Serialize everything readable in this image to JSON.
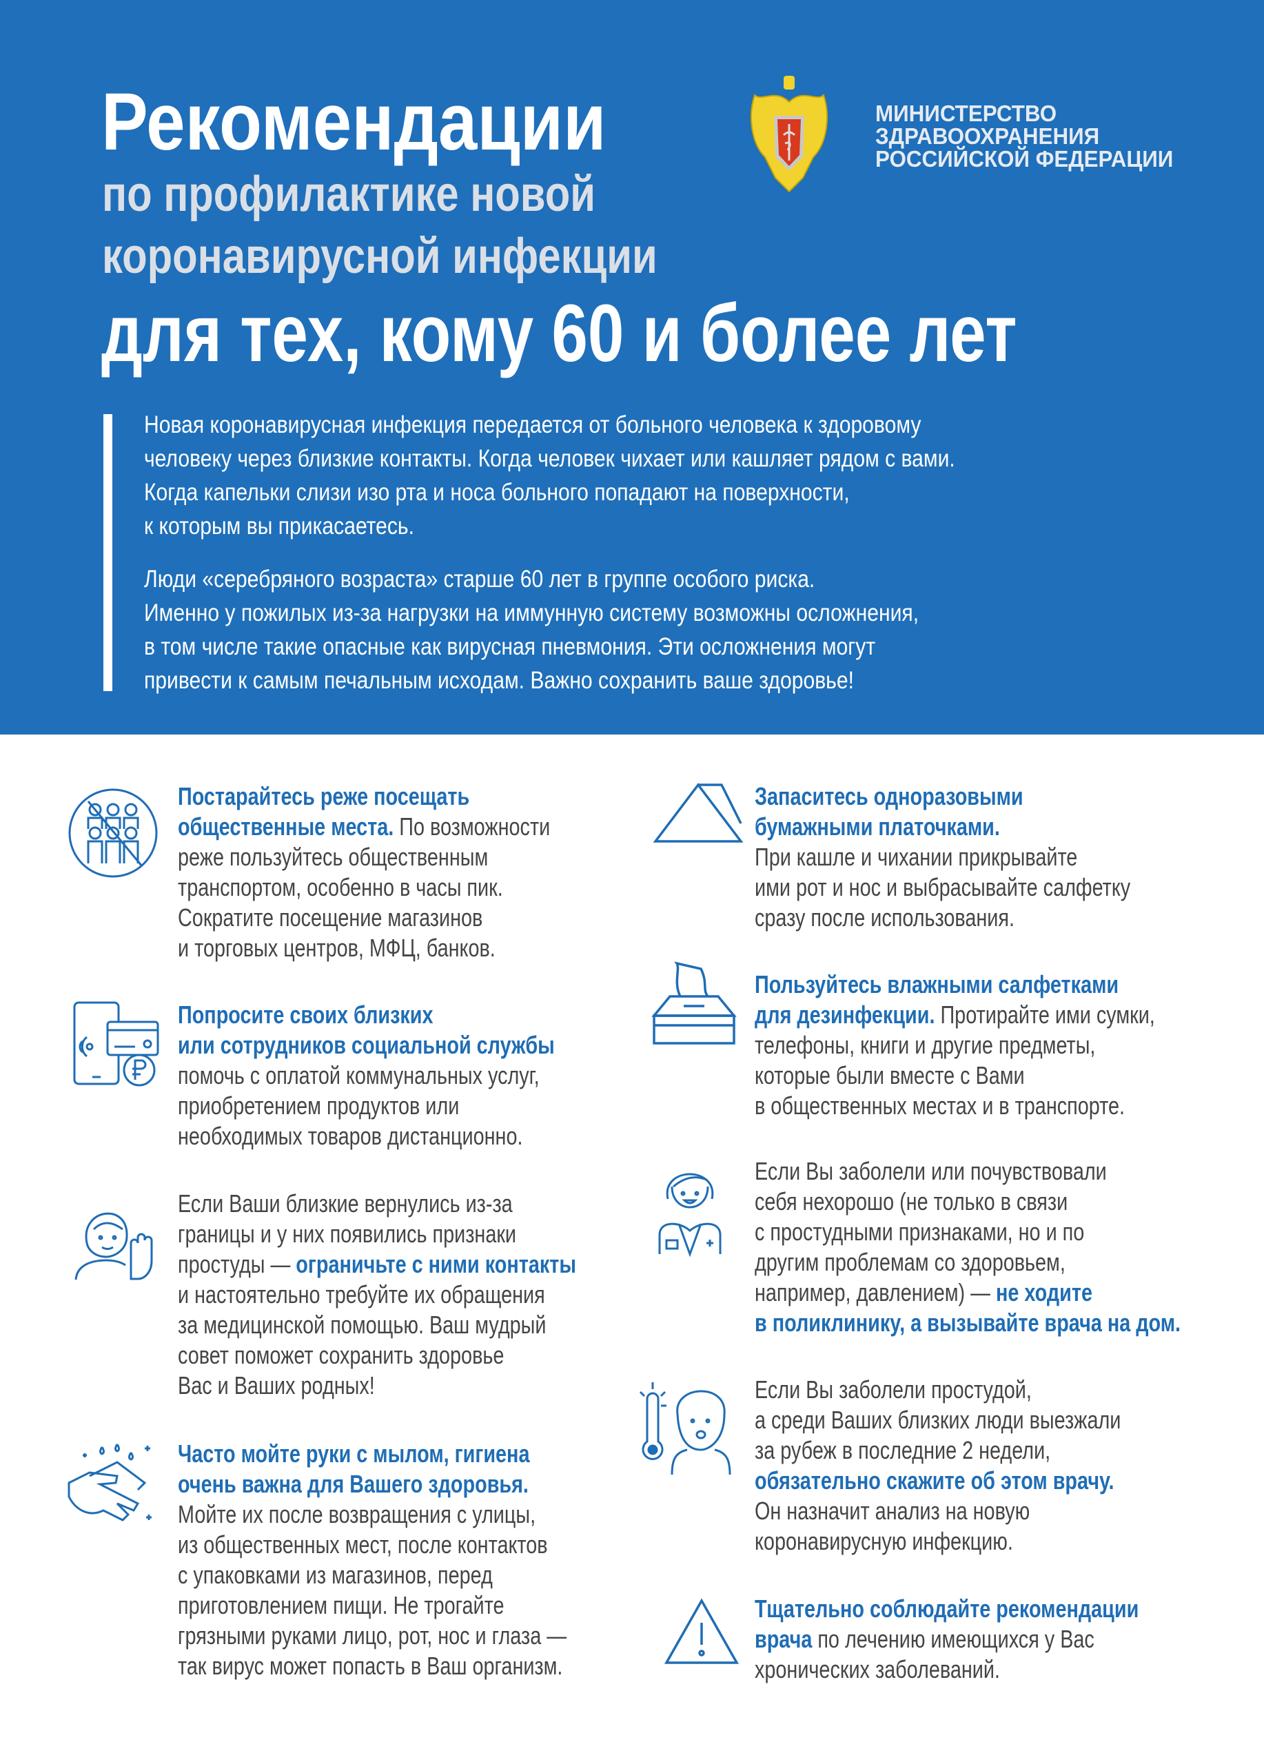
{
  "header": {
    "title": "Рекомендации",
    "subtitle_line1": "по профилактике новой",
    "subtitle_line2": "коронавирусной инфекции",
    "audience": "для тех, кому 60 и более лет",
    "logo": {
      "emblem": "russian-double-headed-eagle-emblem",
      "lines": [
        "МИНИСТЕРСТВО",
        "ЗДРАВООХРАНЕНИЯ",
        "РОССИЙСКОЙ ФЕДЕРАЦИИ"
      ]
    }
  },
  "intro": {
    "paragraphs": [
      [
        "Новая коронавирусная инфекция передается от больного человека к здоровому",
        "человеку через близкие контакты. Когда человек чихает или кашляет рядом с вами.",
        "Когда капельки слизи изо рта и носа больного попадают на поверхности,",
        "к которым вы прикасаетесь."
      ],
      [
        "Люди «серебряного возраста» старше 60 лет в группе особого риска.",
        "Именно у пожилых из-за нагрузки на иммунную систему возможны осложнения,",
        "в том числе такие опасные как вирусная пневмония. Эти осложнения могут",
        "привести к самым печальным исходам. Важно сохранить ваше здоровье!"
      ]
    ]
  },
  "colors": {
    "band": "#1f6fba",
    "accent_text": "#1f6db5",
    "body_text": "#454545",
    "subtitle": "#dadfe6"
  },
  "items": [
    {
      "icon": "crowd-crossed-icon",
      "lines": [
        [
          {
            "t": "Постарайтесь реже посещать",
            "b": true
          }
        ],
        [
          {
            "t": "общественные места.",
            "b": true
          },
          {
            "t": " По возможности"
          }
        ],
        [
          {
            "t": "реже пользуйтесь общественным"
          }
        ],
        [
          {
            "t": "транспортом, особенно в часы пик."
          }
        ],
        [
          {
            "t": "Сократите посещение магазинов"
          }
        ],
        [
          {
            "t": "и торговых центров, МФЦ, банков."
          }
        ]
      ]
    },
    {
      "icon": "phone-card-ruble-icon",
      "lines": [
        [
          {
            "t": "Попросите своих близких",
            "b": true
          }
        ],
        [
          {
            "t": "или сотрудников социальной службы",
            "b": true
          }
        ],
        [
          {
            "t": "помочь с оплатой коммунальных услуг,"
          }
        ],
        [
          {
            "t": "приобретением продуктов или"
          }
        ],
        [
          {
            "t": "необходимых товаров дистанционно."
          }
        ]
      ]
    },
    {
      "icon": "woman-stop-hand-icon",
      "lines": [
        [
          {
            "t": "Если Ваши близкие вернулись из-за"
          }
        ],
        [
          {
            "t": "границы и у них появились признаки"
          }
        ],
        [
          {
            "t": "простуды — "
          },
          {
            "t": "ограничьте с ними контакты",
            "b": true
          }
        ],
        [
          {
            "t": "и настоятельно требуйте их обращения"
          }
        ],
        [
          {
            "t": "за медицинской помощью. Ваш мудрый"
          }
        ],
        [
          {
            "t": "совет поможет сохранить здоровье"
          }
        ],
        [
          {
            "t": "Вас и Ваших родных!"
          }
        ]
      ]
    },
    {
      "icon": "hand-washing-icon",
      "lines": [
        [
          {
            "t": "Часто мойте руки с мылом, гигиена",
            "b": true
          }
        ],
        [
          {
            "t": "очень важна для Вашего здоровья.",
            "b": true
          }
        ],
        [
          {
            "t": "Мойте их после возвращения с улицы,"
          }
        ],
        [
          {
            "t": "из общественных мест, после контактов"
          }
        ],
        [
          {
            "t": "с упаковками из магазинов, перед"
          }
        ],
        [
          {
            "t": "приготовлением пищи. Не трогайте"
          }
        ],
        [
          {
            "t": "грязными руками лицо, рот, нос и глаза —"
          }
        ],
        [
          {
            "t": "так вирус может попасть в Ваш организм."
          }
        ]
      ]
    },
    {
      "icon": "napkin-triangle-icon",
      "lines": [
        [
          {
            "t": "Запаситесь одноразовыми",
            "b": true
          }
        ],
        [
          {
            "t": "бумажными платочками.",
            "b": true
          }
        ],
        [
          {
            "t": "При кашле и чихании прикрывайте"
          }
        ],
        [
          {
            "t": "ими рот и нос и выбрасывайте салфетку"
          }
        ],
        [
          {
            "t": "сразу после использования."
          }
        ]
      ]
    },
    {
      "icon": "tissue-box-icon",
      "lines": [
        [
          {
            "t": "Пользуйтесь влажными салфетками",
            "b": true
          }
        ],
        [
          {
            "t": "для дезинфекции.",
            "b": true
          },
          {
            "t": " Протирайте ими сумки,"
          }
        ],
        [
          {
            "t": "телефоны, книги и другие предметы,"
          }
        ],
        [
          {
            "t": "которые были вместе с Вами"
          }
        ],
        [
          {
            "t": "в общественных местах и в транспорте."
          }
        ]
      ]
    },
    {
      "icon": "doctor-icon",
      "lines": [
        [
          {
            "t": "Если Вы заболели или почувствовали"
          }
        ],
        [
          {
            "t": "себя нехорошо (не только в связи"
          }
        ],
        [
          {
            "t": "с простудными признаками, но и по"
          }
        ],
        [
          {
            "t": "другим проблемам со здоровьем,"
          }
        ],
        [
          {
            "t": "например, давлением) — "
          },
          {
            "t": "не ходите",
            "b": true
          }
        ],
        [
          {
            "t": "в поликлинику, а вызывайте врача на дом.",
            "b": true
          }
        ]
      ]
    },
    {
      "icon": "thermometer-sick-person-icon",
      "lines": [
        [
          {
            "t": "Если Вы заболели простудой,"
          }
        ],
        [
          {
            "t": "а среди Ваших близких люди выезжали"
          }
        ],
        [
          {
            "t": "за рубеж в последние 2 недели,"
          }
        ],
        [
          {
            "t": "обязательно скажите об этом врачу.",
            "b": true
          }
        ],
        [
          {
            "t": "Он назначит анализ на новую"
          }
        ],
        [
          {
            "t": "коронавирусную инфекцию."
          }
        ]
      ]
    },
    {
      "icon": "warning-triangle-icon",
      "lines": [
        [
          {
            "t": "Тщательно соблюдайте рекомендации",
            "b": true
          }
        ],
        [
          {
            "t": "врача",
            "b": true
          },
          {
            "t": " по лечению имеющихся у Вас"
          }
        ],
        [
          {
            "t": "хронических заболеваний."
          }
        ]
      ]
    }
  ]
}
